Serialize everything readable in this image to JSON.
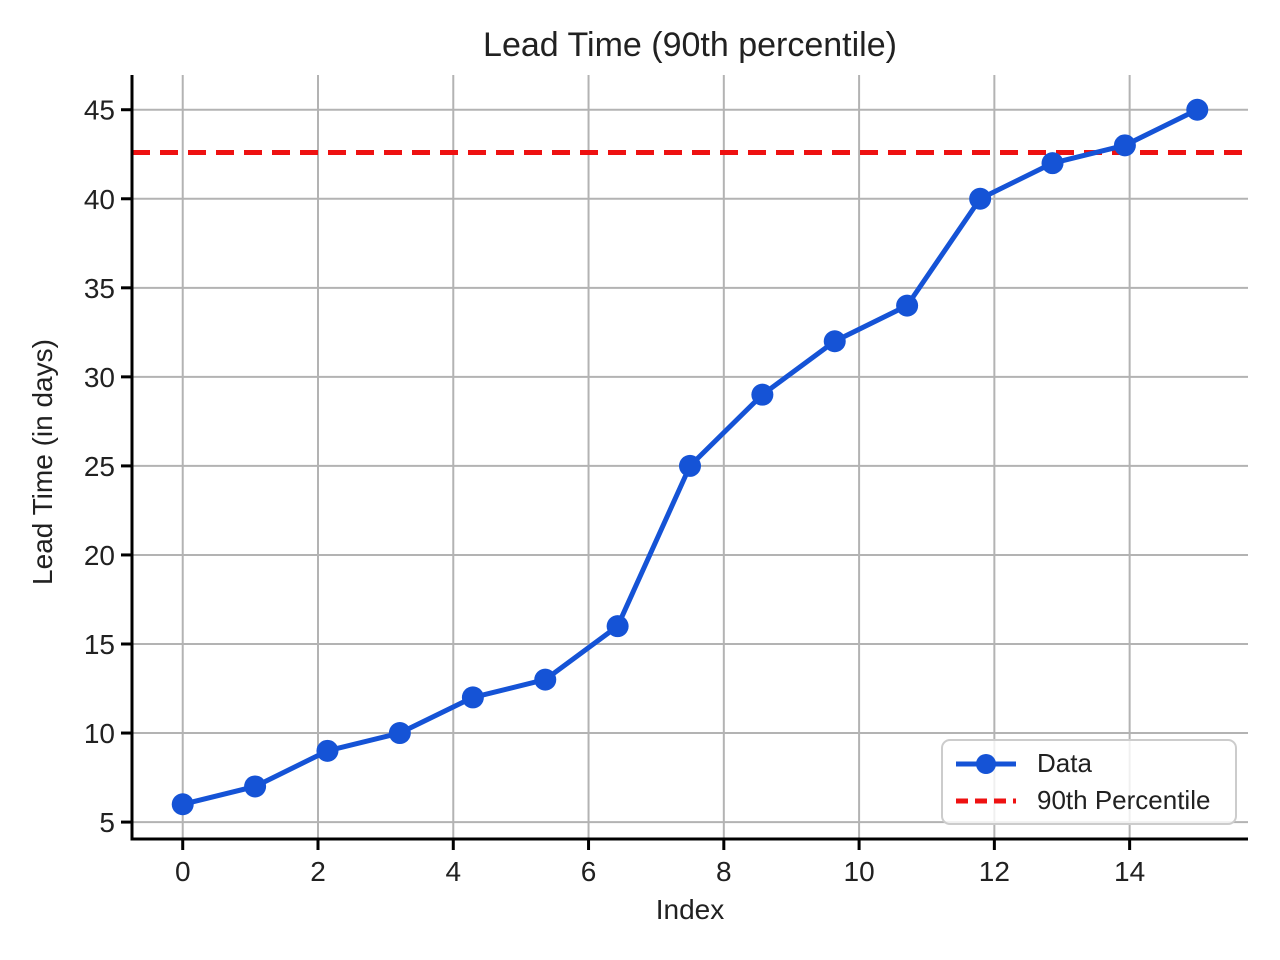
{
  "chart_data": {
    "type": "line",
    "title": "Lead Time (90th percentile)",
    "xlabel": "Index",
    "ylabel": "Lead Time (in days)",
    "x": [
      0,
      1.07,
      2.14,
      3.21,
      4.29,
      5.36,
      6.43,
      7.5,
      8.57,
      9.64,
      10.71,
      11.79,
      12.86,
      13.93,
      15
    ],
    "series": [
      {
        "name": "Data",
        "values": [
          6,
          7,
          9,
          10,
          12,
          13,
          16,
          25,
          29,
          32,
          34,
          40,
          42,
          43,
          45
        ],
        "color": "#1553d6",
        "marker": "circle",
        "line_style": "solid"
      }
    ],
    "reference_lines": [
      {
        "name": "90th Percentile",
        "value": 42.6,
        "color": "#ee1111",
        "style": "dashed"
      }
    ],
    "xticks": [
      0,
      2,
      4,
      6,
      8,
      10,
      12,
      14
    ],
    "yticks": [
      5,
      10,
      15,
      20,
      25,
      30,
      35,
      40,
      45
    ],
    "xlim": [
      -0.75,
      15.75
    ],
    "ylim": [
      4.05,
      46.95
    ],
    "grid": true,
    "grid_color": "#b3b3b3",
    "axis_color": "#000000",
    "text_color": "#212121",
    "legend_position": "lower right"
  }
}
